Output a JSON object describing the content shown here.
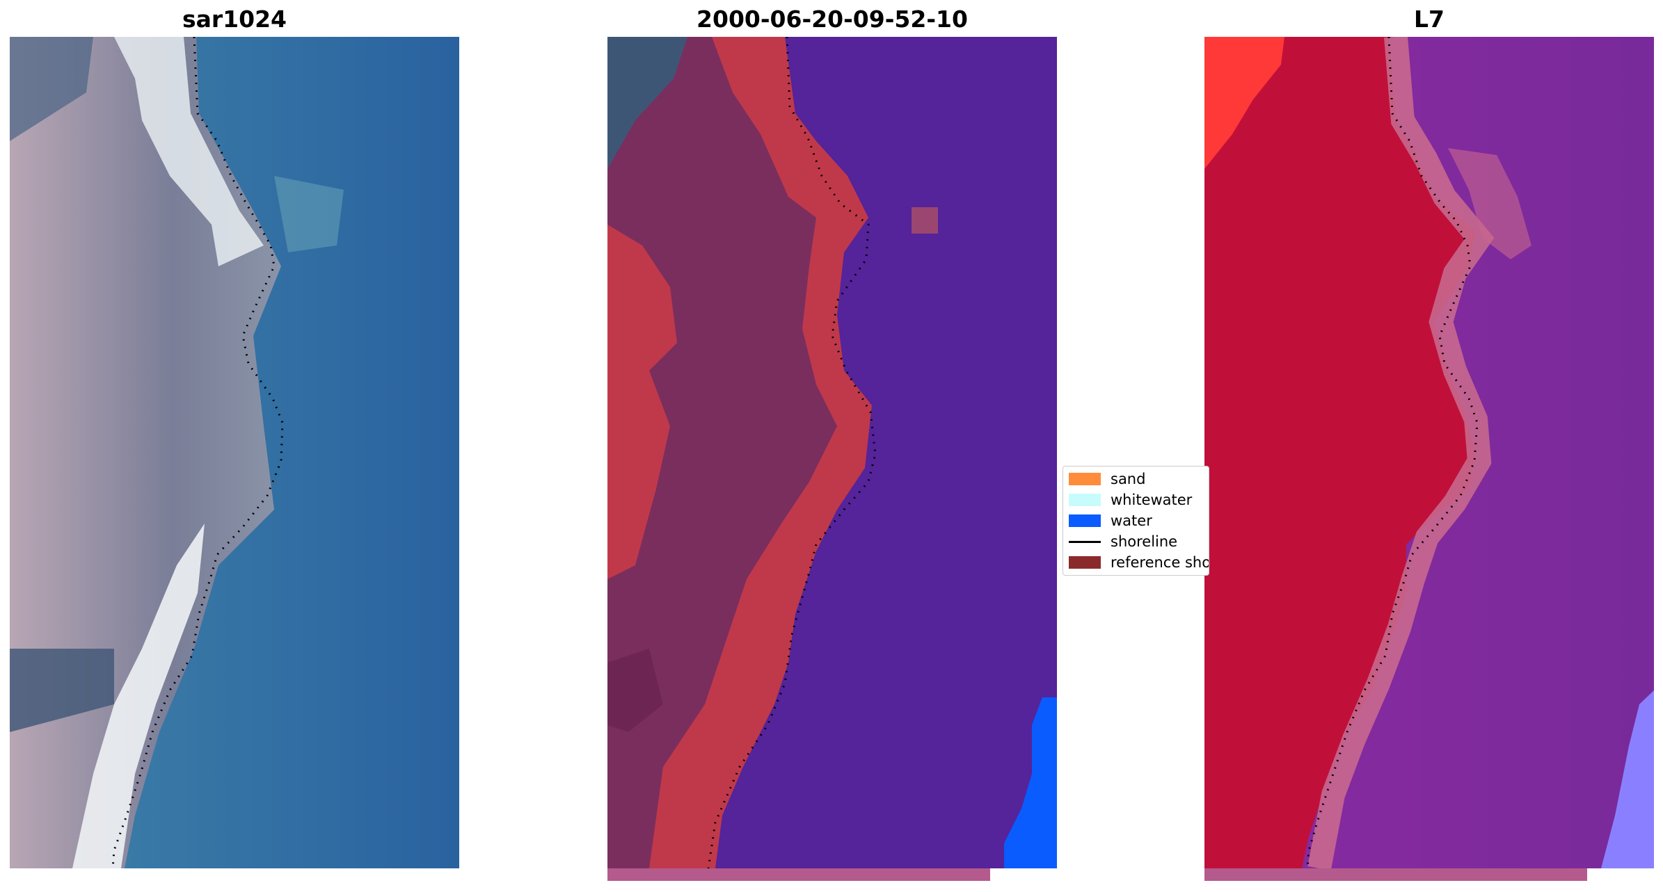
{
  "figure": {
    "panels": [
      {
        "id": "rgb",
        "title": "sar1024"
      },
      {
        "id": "classified",
        "title": "2000-06-20-09-52-10"
      },
      {
        "id": "index",
        "title": "L7"
      }
    ]
  },
  "legend": {
    "items": [
      {
        "label": "sand",
        "color": "#ff8c3a",
        "kind": "patch"
      },
      {
        "label": "whitewater",
        "color": "#c8fcfc",
        "kind": "patch"
      },
      {
        "label": "water",
        "color": "#0a5cff",
        "kind": "patch"
      },
      {
        "label": "shoreline",
        "color": "#000000",
        "kind": "line"
      },
      {
        "label": "reference shoreline",
        "color": "#8b2a2a",
        "kind": "patch"
      }
    ]
  },
  "colors": {
    "rgb_water": "#2e6ea6",
    "rgb_land": "#8f8fa8",
    "rgb_beach": "#e8eef0",
    "class_land": "#7a2e5e",
    "class_sand": "#c0394a",
    "class_water": "#55239a",
    "class_water_blue": "#0a5cff",
    "index_land": "#c0103a",
    "index_transition": "#c8688e",
    "index_water": "#7c2a9e",
    "index_light": "#8a80ff",
    "reference_band": "#b45a8c"
  }
}
